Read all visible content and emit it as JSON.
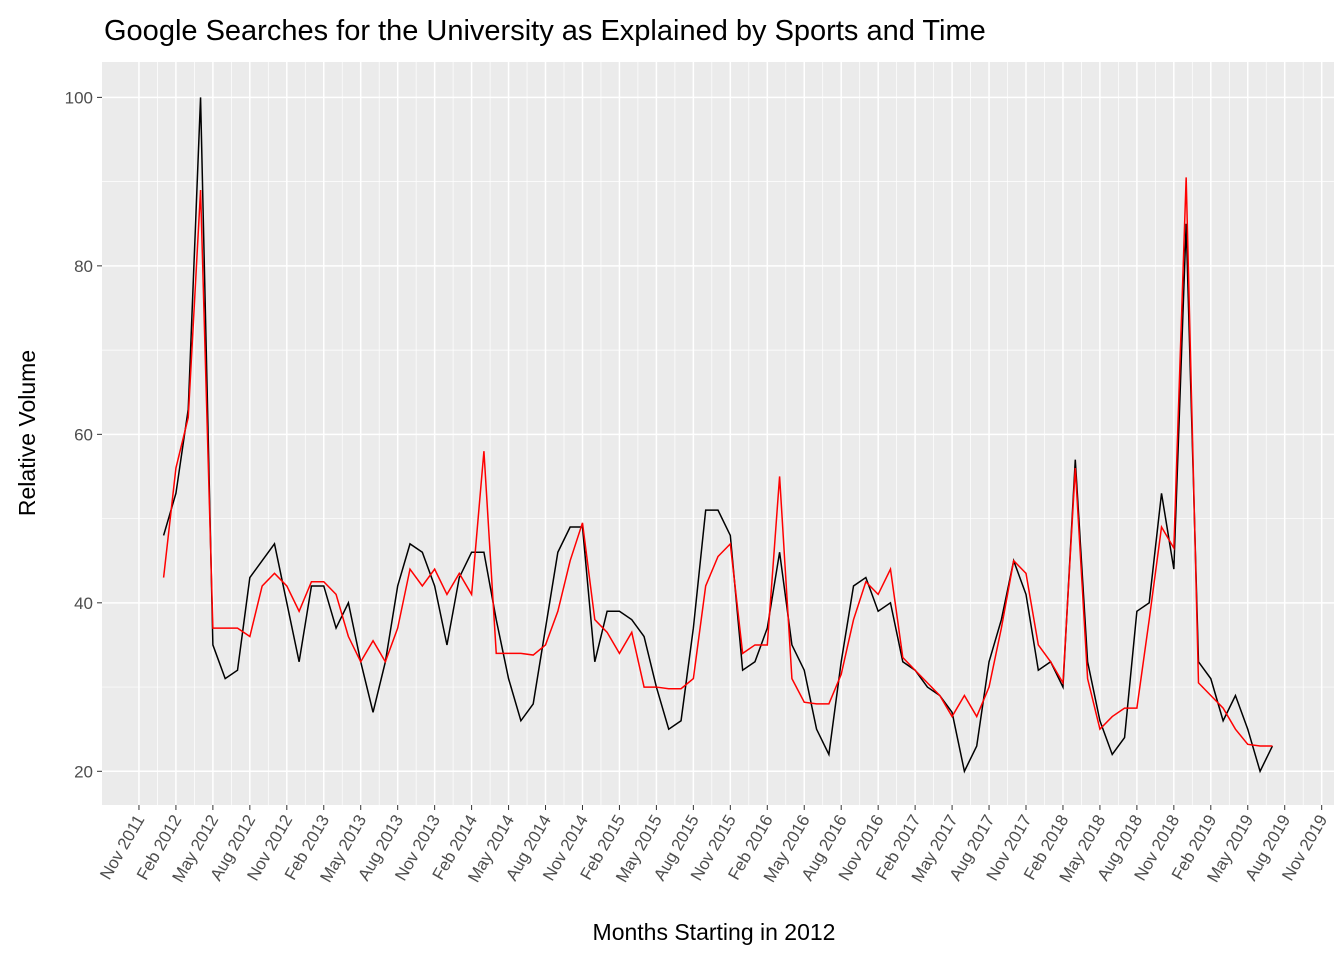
{
  "chart_data": {
    "type": "line",
    "title": "Google Searches for the University as Explained by Sports and Time",
    "x_label": "Months Starting in 2012",
    "y_label": "Relative Volume",
    "x": [
      "2012-01",
      "2012-02",
      "2012-03",
      "2012-04",
      "2012-05",
      "2012-06",
      "2012-07",
      "2012-08",
      "2012-09",
      "2012-10",
      "2012-11",
      "2012-12",
      "2013-01",
      "2013-02",
      "2013-03",
      "2013-04",
      "2013-05",
      "2013-06",
      "2013-07",
      "2013-08",
      "2013-09",
      "2013-10",
      "2013-11",
      "2013-12",
      "2014-01",
      "2014-02",
      "2014-03",
      "2014-04",
      "2014-05",
      "2014-06",
      "2014-07",
      "2014-08",
      "2014-09",
      "2014-10",
      "2014-11",
      "2014-12",
      "2015-01",
      "2015-02",
      "2015-03",
      "2015-04",
      "2015-05",
      "2015-06",
      "2015-07",
      "2015-08",
      "2015-09",
      "2015-10",
      "2015-11",
      "2015-12",
      "2016-01",
      "2016-02",
      "2016-03",
      "2016-04",
      "2016-05",
      "2016-06",
      "2016-07",
      "2016-08",
      "2016-09",
      "2016-10",
      "2016-11",
      "2016-12",
      "2017-01",
      "2017-02",
      "2017-03",
      "2017-04",
      "2017-05",
      "2017-06",
      "2017-07",
      "2017-08",
      "2017-09",
      "2017-10",
      "2017-11",
      "2017-12",
      "2018-01",
      "2018-02",
      "2018-03",
      "2018-04",
      "2018-05",
      "2018-06",
      "2018-07",
      "2018-08",
      "2018-09",
      "2018-10",
      "2018-11",
      "2018-12",
      "2019-01",
      "2019-02",
      "2019-03",
      "2019-04",
      "2019-05",
      "2019-06",
      "2019-07"
    ],
    "series": [
      {
        "color": "#000000",
        "values": [
          48,
          53,
          63,
          100,
          35,
          31,
          32,
          43,
          45,
          47,
          40,
          33,
          42,
          42,
          37,
          40,
          33,
          27,
          33,
          42,
          47,
          46,
          42,
          35,
          43,
          46,
          46,
          38,
          31,
          26,
          28,
          37,
          46,
          49,
          49,
          33,
          39,
          39,
          38,
          36,
          30,
          25,
          26,
          37,
          51,
          51,
          48,
          32,
          33,
          37,
          46,
          35,
          32,
          25,
          22,
          33,
          42,
          43,
          39,
          40,
          33,
          32,
          30,
          29,
          27,
          20,
          23,
          33,
          38,
          45,
          41,
          32,
          33,
          30,
          57,
          33,
          26,
          22,
          24,
          39,
          40,
          53,
          44,
          85,
          33,
          31,
          26,
          29,
          25,
          20,
          23
        ]
      },
      {
        "color": "#ff0000",
        "values": [
          43,
          56,
          62,
          89,
          37,
          37,
          37,
          36,
          42,
          43.5,
          42,
          39,
          42.5,
          42.5,
          41,
          36,
          33,
          35.5,
          33,
          37,
          44,
          42,
          44,
          41,
          43.5,
          41,
          58,
          34,
          34,
          34,
          33.8,
          35,
          39,
          45,
          49.5,
          38,
          36.5,
          34,
          36.5,
          30,
          30,
          29.8,
          29.8,
          31,
          42,
          45.5,
          47,
          34,
          35,
          35,
          55,
          31,
          28.2,
          28,
          28,
          31.5,
          38,
          42.5,
          41,
          44,
          33.5,
          32,
          30.5,
          29,
          26.5,
          29,
          26.5,
          30,
          37,
          45,
          43.5,
          35,
          33,
          30.5,
          56,
          31,
          25,
          26.5,
          27.5,
          27.5,
          38,
          49,
          46.5,
          90.5,
          30.5,
          29,
          27.5,
          25,
          23.2,
          23,
          23
        ]
      }
    ],
    "xlim": [
      "2011-08",
      "2019-12"
    ],
    "xticks": [
      {
        "value": "2011-11",
        "label": "Nov 2011"
      },
      {
        "value": "2012-02",
        "label": "Feb 2012"
      },
      {
        "value": "2012-05",
        "label": "May 2012"
      },
      {
        "value": "2012-08",
        "label": "Aug 2012"
      },
      {
        "value": "2012-11",
        "label": "Nov 2012"
      },
      {
        "value": "2013-02",
        "label": "Feb 2013"
      },
      {
        "value": "2013-05",
        "label": "May 2013"
      },
      {
        "value": "2013-08",
        "label": "Aug 2013"
      },
      {
        "value": "2013-11",
        "label": "Nov 2013"
      },
      {
        "value": "2014-02",
        "label": "Feb 2014"
      },
      {
        "value": "2014-05",
        "label": "May 2014"
      },
      {
        "value": "2014-08",
        "label": "Aug 2014"
      },
      {
        "value": "2014-11",
        "label": "Nov 2014"
      },
      {
        "value": "2015-02",
        "label": "Feb 2015"
      },
      {
        "value": "2015-05",
        "label": "May 2015"
      },
      {
        "value": "2015-08",
        "label": "Aug 2015"
      },
      {
        "value": "2015-11",
        "label": "Nov 2015"
      },
      {
        "value": "2016-02",
        "label": "Feb 2016"
      },
      {
        "value": "2016-05",
        "label": "May 2016"
      },
      {
        "value": "2016-08",
        "label": "Aug 2016"
      },
      {
        "value": "2016-11",
        "label": "Nov 2016"
      },
      {
        "value": "2017-02",
        "label": "Feb 2017"
      },
      {
        "value": "2017-05",
        "label": "May 2017"
      },
      {
        "value": "2017-08",
        "label": "Aug 2017"
      },
      {
        "value": "2017-11",
        "label": "Nov 2017"
      },
      {
        "value": "2018-02",
        "label": "Feb 2018"
      },
      {
        "value": "2018-05",
        "label": "May 2018"
      },
      {
        "value": "2018-08",
        "label": "Aug 2018"
      },
      {
        "value": "2018-11",
        "label": "Nov 2018"
      },
      {
        "value": "2019-02",
        "label": "Feb 2019"
      },
      {
        "value": "2019-05",
        "label": "May 2019"
      },
      {
        "value": "2019-08",
        "label": "Aug 2019"
      },
      {
        "value": "2019-11",
        "label": "Nov 2019"
      }
    ],
    "ylim": [
      16,
      104.2
    ],
    "yticks": [
      20,
      40,
      60,
      80,
      100
    ],
    "grid": true
  }
}
